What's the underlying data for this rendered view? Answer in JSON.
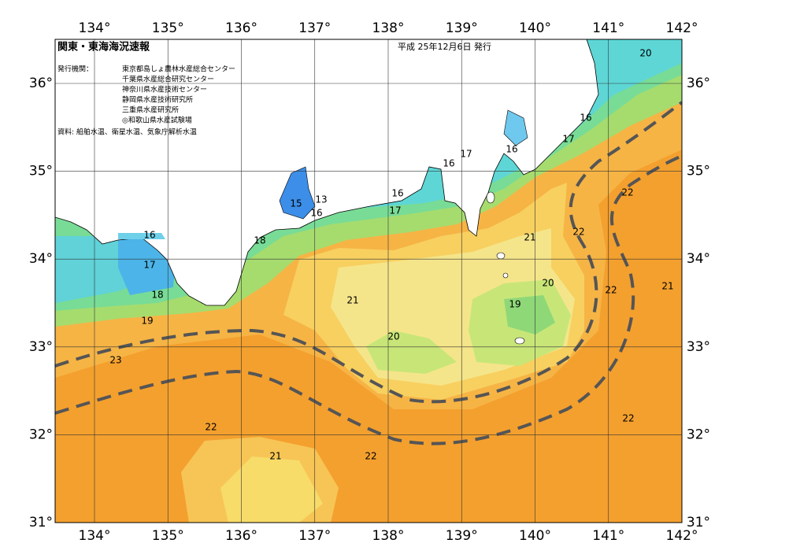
{
  "header": {
    "title": "関東・東海海況速報",
    "issued": "平成 25年12月6日 発行",
    "issuers_label": "発行機関：",
    "issuers": [
      "東京都島しょ農林水産総合センター",
      "千葉県水産総合研究センター",
      "神奈川県水産技術センター",
      "静岡県水産技術研究所",
      "三重県水産研究所",
      "◎和歌山県水産試験場"
    ],
    "sources": "資料: 船舶水温、衛星水温、気象庁解析水温"
  },
  "map": {
    "lon_labels": [
      "134°",
      "135°",
      "136°",
      "137°",
      "138°",
      "139°",
      "140°",
      "141°",
      "142°"
    ],
    "lat_labels": [
      "36°",
      "35°",
      "34°",
      "33°",
      "32°",
      "31°"
    ],
    "contour_labels": [
      20,
      16,
      17,
      16,
      17,
      16,
      16,
      17,
      15,
      13,
      16,
      18,
      16,
      17,
      18,
      19,
      23,
      22,
      21,
      22,
      20,
      21,
      21,
      20,
      19,
      22,
      22,
      22,
      21,
      22
    ]
  }
}
